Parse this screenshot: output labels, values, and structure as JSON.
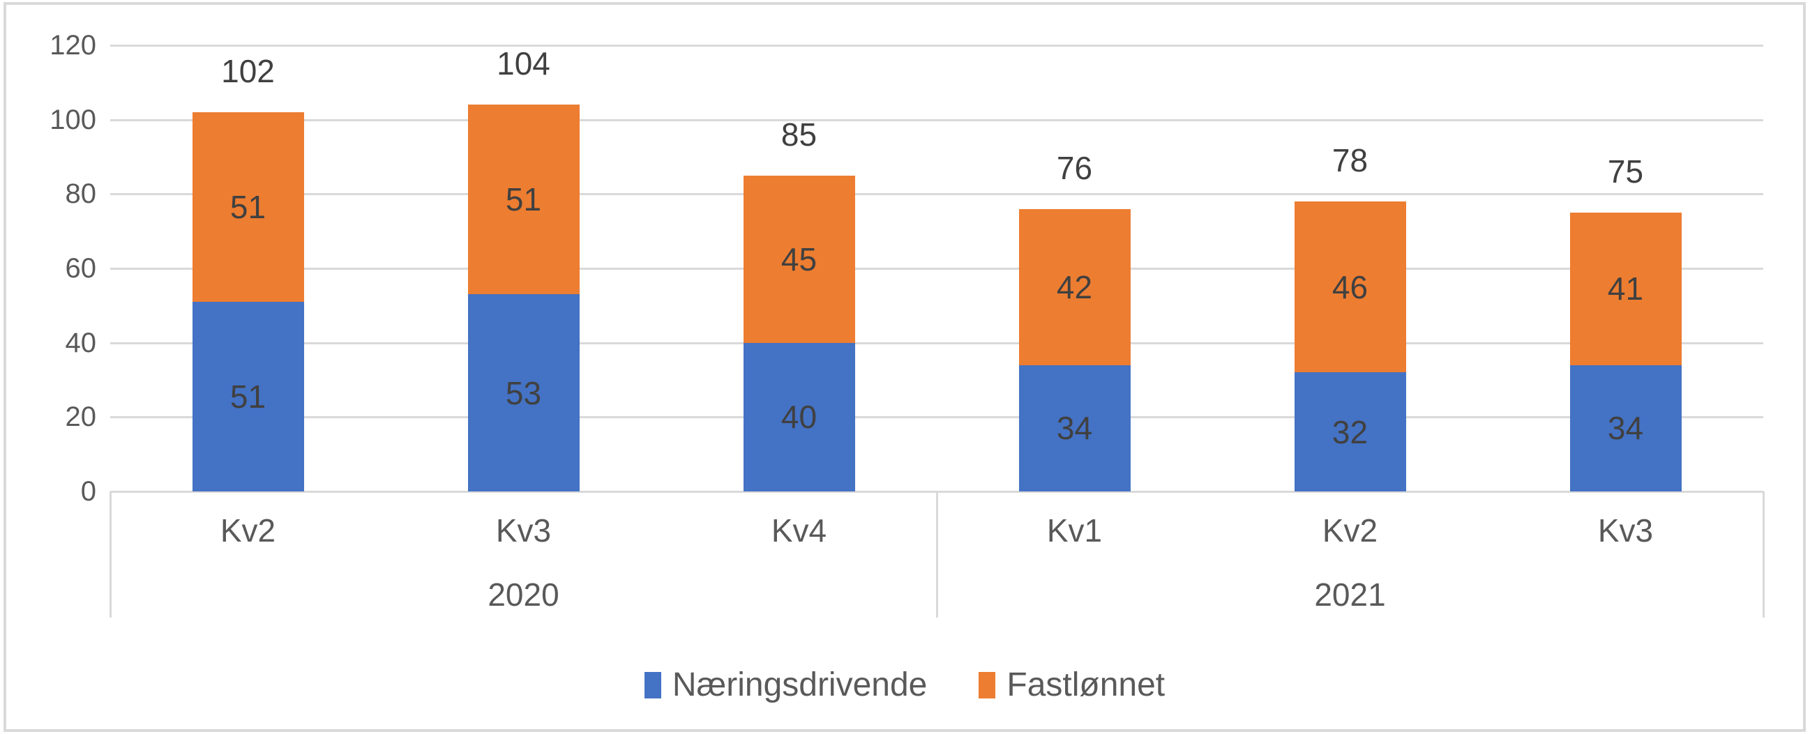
{
  "chart_data": {
    "type": "bar",
    "stacked": true,
    "title": "",
    "categories": [
      "Kv2",
      "Kv3",
      "Kv4",
      "Kv1",
      "Kv2",
      "Kv3"
    ],
    "groups": [
      {
        "label": "2020",
        "span": [
          0,
          2
        ]
      },
      {
        "label": "2021",
        "span": [
          3,
          5
        ]
      }
    ],
    "series": [
      {
        "name": "Næringsdrivende",
        "color": "#4472c4",
        "values": [
          51,
          53,
          40,
          34,
          32,
          34
        ]
      },
      {
        "name": "Fastlønnet",
        "color": "#ed7d31",
        "values": [
          51,
          51,
          45,
          42,
          46,
          41
        ]
      }
    ],
    "totals": [
      102,
      104,
      85,
      76,
      78,
      75
    ],
    "ylim": [
      0,
      120
    ],
    "y_ticks": [
      0,
      20,
      40,
      60,
      80,
      100,
      120
    ],
    "grid": true,
    "legend_position": "bottom",
    "data_label_color": "#404040",
    "axis_text_color": "#595959",
    "gridline_color": "#d9d9d9"
  },
  "legend": {
    "items": [
      {
        "label": "Næringsdrivende",
        "color": "#4472c4"
      },
      {
        "label": "Fastlønnet",
        "color": "#ed7d31"
      }
    ]
  }
}
